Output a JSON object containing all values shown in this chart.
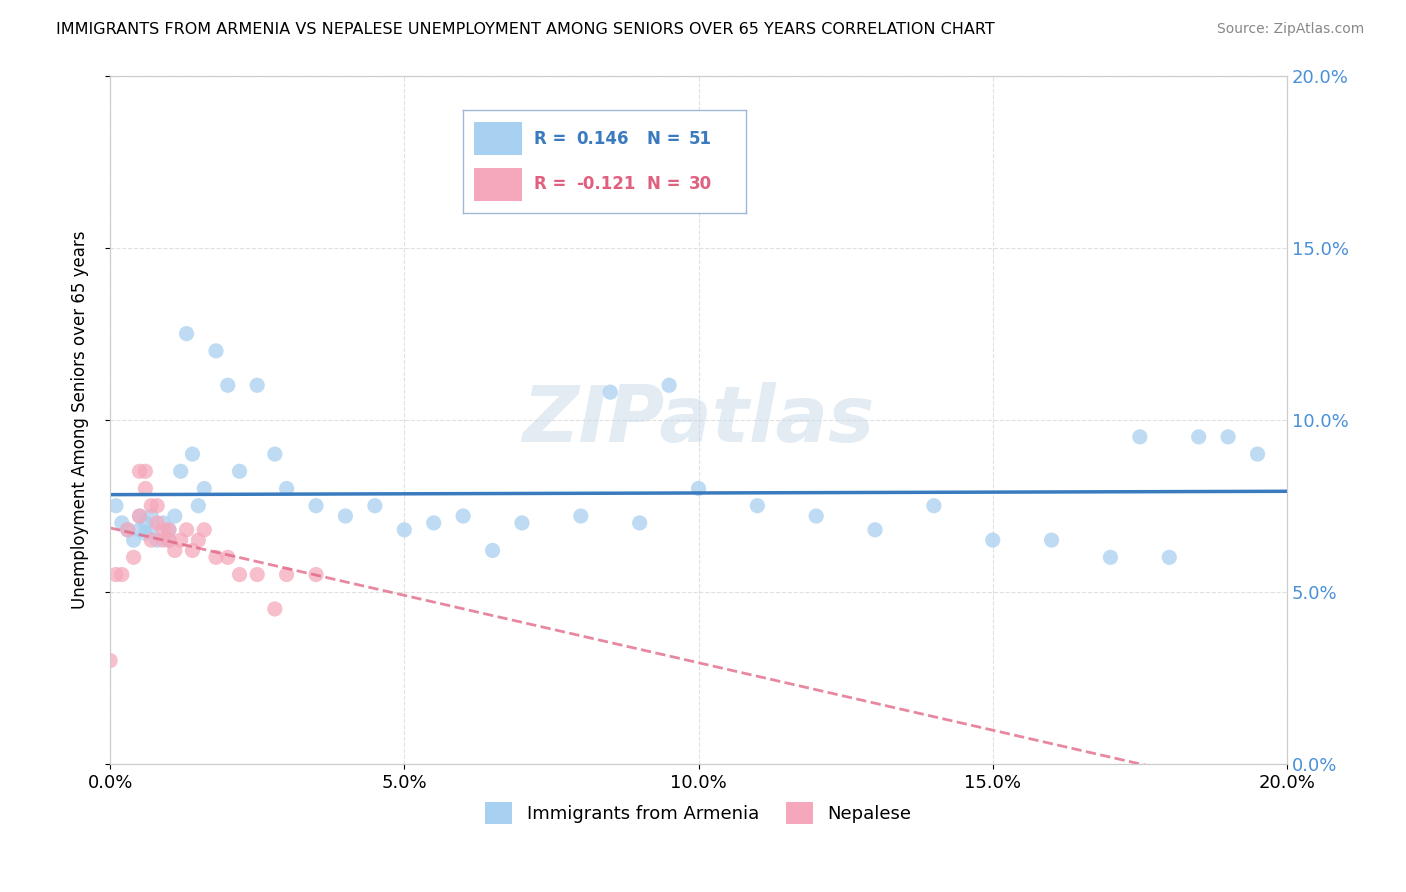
{
  "title": "IMMIGRANTS FROM ARMENIA VS NEPALESE UNEMPLOYMENT AMONG SENIORS OVER 65 YEARS CORRELATION CHART",
  "source": "Source: ZipAtlas.com",
  "ylabel": "Unemployment Among Seniors over 65 years",
  "xlim": [
    0.0,
    0.2
  ],
  "ylim": [
    0.0,
    0.2
  ],
  "xticks": [
    0.0,
    0.05,
    0.1,
    0.15,
    0.2
  ],
  "yticks": [
    0.0,
    0.05,
    0.1,
    0.15,
    0.2
  ],
  "xtick_labels": [
    "0.0%",
    "5.0%",
    "10.0%",
    "15.0%",
    "20.0%"
  ],
  "ytick_labels": [
    "0.0%",
    "5.0%",
    "10.0%",
    "15.0%",
    "20.0%"
  ],
  "armenia_color": "#a8d0f0",
  "nepalese_color": "#f5a8bb",
  "armenia_line_color": "#3a7abf",
  "nepalese_line_color": "#e06080",
  "legend_label_armenia": "Immigrants from Armenia",
  "legend_label_nepalese": "Nepalese",
  "watermark": "ZIPatlas",
  "armenia_x": [
    0.001,
    0.002,
    0.003,
    0.004,
    0.005,
    0.005,
    0.006,
    0.006,
    0.007,
    0.007,
    0.008,
    0.009,
    0.01,
    0.01,
    0.011,
    0.012,
    0.013,
    0.014,
    0.015,
    0.016,
    0.018,
    0.02,
    0.022,
    0.025,
    0.028,
    0.03,
    0.035,
    0.04,
    0.045,
    0.05,
    0.055,
    0.06,
    0.065,
    0.07,
    0.08,
    0.085,
    0.09,
    0.095,
    0.1,
    0.11,
    0.12,
    0.13,
    0.14,
    0.15,
    0.16,
    0.17,
    0.175,
    0.18,
    0.185,
    0.19,
    0.195
  ],
  "armenia_y": [
    0.075,
    0.07,
    0.068,
    0.065,
    0.072,
    0.068,
    0.067,
    0.07,
    0.072,
    0.068,
    0.065,
    0.07,
    0.065,
    0.068,
    0.072,
    0.085,
    0.125,
    0.09,
    0.075,
    0.08,
    0.12,
    0.11,
    0.085,
    0.11,
    0.09,
    0.08,
    0.075,
    0.072,
    0.075,
    0.068,
    0.07,
    0.072,
    0.062,
    0.07,
    0.072,
    0.108,
    0.07,
    0.11,
    0.08,
    0.075,
    0.072,
    0.068,
    0.075,
    0.065,
    0.065,
    0.06,
    0.095,
    0.06,
    0.095,
    0.095,
    0.09
  ],
  "nepalese_x": [
    0.0,
    0.001,
    0.002,
    0.003,
    0.004,
    0.005,
    0.005,
    0.006,
    0.006,
    0.007,
    0.007,
    0.008,
    0.008,
    0.009,
    0.009,
    0.01,
    0.01,
    0.011,
    0.012,
    0.013,
    0.014,
    0.015,
    0.016,
    0.018,
    0.02,
    0.022,
    0.025,
    0.028,
    0.03,
    0.035
  ],
  "nepalese_y": [
    0.03,
    0.055,
    0.055,
    0.068,
    0.06,
    0.085,
    0.072,
    0.085,
    0.08,
    0.075,
    0.065,
    0.075,
    0.07,
    0.068,
    0.065,
    0.068,
    0.065,
    0.062,
    0.065,
    0.068,
    0.062,
    0.065,
    0.068,
    0.06,
    0.06,
    0.055,
    0.055,
    0.045,
    0.055,
    0.055
  ],
  "background_color": "#ffffff",
  "grid_color": "#dddddd"
}
